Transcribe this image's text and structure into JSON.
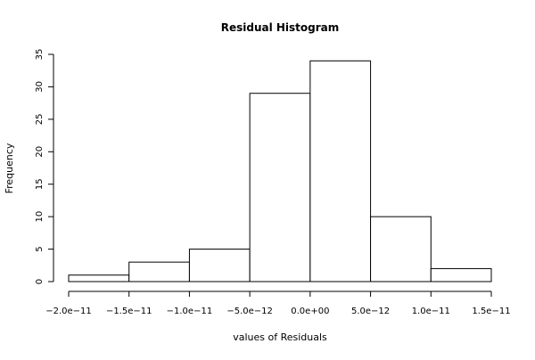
{
  "chart_data": {
    "type": "bar",
    "title": "Residual Histogram",
    "xlabel": "values of Residuals",
    "ylabel": "Frequency",
    "bins": [
      {
        "from": -2e-11,
        "to": -1.5e-11,
        "count": 1
      },
      {
        "from": -1.5e-11,
        "to": -1e-11,
        "count": 3
      },
      {
        "from": -1e-11,
        "to": -5e-12,
        "count": 5
      },
      {
        "from": -5e-12,
        "to": 0.0,
        "count": 29
      },
      {
        "from": 0.0,
        "to": 5e-12,
        "count": 34
      },
      {
        "from": 5e-12,
        "to": 1e-11,
        "count": 10
      },
      {
        "from": 1e-11,
        "to": 1.5e-11,
        "count": 2
      }
    ],
    "x_ticks": [
      {
        "value": -2e-11,
        "label": "−2.0e−11"
      },
      {
        "value": -1.5e-11,
        "label": "−1.5e−11"
      },
      {
        "value": -1e-11,
        "label": "−1.0e−11"
      },
      {
        "value": -5e-12,
        "label": "−5.0e−12"
      },
      {
        "value": 0.0,
        "label": "0.0e+00"
      },
      {
        "value": 5e-12,
        "label": "5.0e−12"
      },
      {
        "value": 1e-11,
        "label": "1.0e−11"
      },
      {
        "value": 1.5e-11,
        "label": "1.5e−11"
      }
    ],
    "y_ticks": [
      {
        "value": 0,
        "label": "0"
      },
      {
        "value": 5,
        "label": "5"
      },
      {
        "value": 10,
        "label": "10"
      },
      {
        "value": 15,
        "label": "15"
      },
      {
        "value": 20,
        "label": "20"
      },
      {
        "value": 25,
        "label": "25"
      },
      {
        "value": 30,
        "label": "30"
      },
      {
        "value": 35,
        "label": "35"
      }
    ],
    "xlim": [
      -2e-11,
      1.5e-11
    ],
    "ylim": [
      0,
      35
    ],
    "grid": false,
    "legend": "none"
  }
}
